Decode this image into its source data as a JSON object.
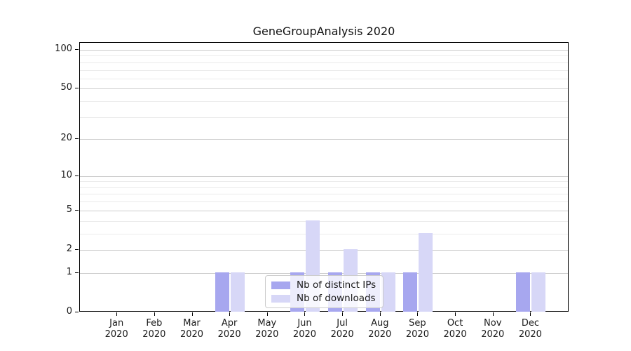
{
  "chart_data": {
    "type": "bar",
    "title": "GeneGroupAnalysis 2020",
    "categories": [
      "Jan",
      "Feb",
      "Mar",
      "Apr",
      "May",
      "Jun",
      "Jul",
      "Aug",
      "Sep",
      "Oct",
      "Nov",
      "Dec"
    ],
    "category_year": "2020",
    "series": [
      {
        "name": "Nb of distinct IPs",
        "color": "#a7a7ef",
        "values": [
          0,
          0,
          0,
          1,
          0,
          1,
          1,
          1,
          1,
          0,
          0,
          1
        ]
      },
      {
        "name": "Nb of downloads",
        "color": "#d7d7f7",
        "values": [
          0,
          0,
          0,
          1,
          0,
          4,
          2,
          1,
          3,
          0,
          0,
          1
        ]
      }
    ],
    "y_axis": {
      "scale": "log1p",
      "ticks": [
        0,
        1,
        2,
        5,
        10,
        20,
        50,
        100
      ],
      "minor_gridlines": [
        3,
        4,
        6,
        7,
        8,
        9,
        30,
        40,
        60,
        70,
        80,
        90
      ],
      "max": 113
    },
    "x_axis": {
      "label_line2": "2020"
    },
    "grid": "horizontal",
    "legend_position": "lower center",
    "colors": {
      "major_grid": "#cccccc",
      "minor_grid": "#ebebeb",
      "axis": "#000000",
      "text": "#1a1a1a"
    }
  }
}
